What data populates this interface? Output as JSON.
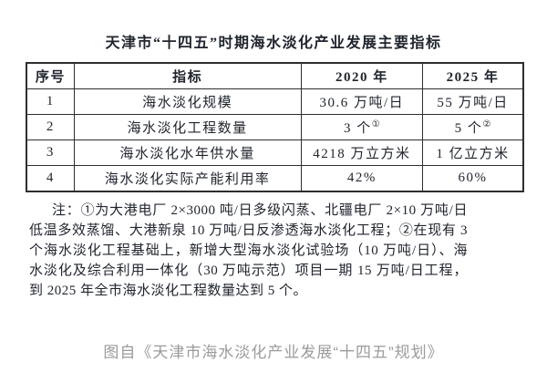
{
  "title": "天津市“十四五”时期海水淡化产业发展主要指标",
  "table": {
    "headers": [
      "序号",
      "指标",
      "2020 年",
      "2025 年"
    ],
    "rows": [
      {
        "no": "1",
        "indicator": "海水淡化规模",
        "v2020": "30.6 万吨/日",
        "s2020": "",
        "v2025": "55 万吨/日",
        "s2025": ""
      },
      {
        "no": "2",
        "indicator": "海水淡化工程数量",
        "v2020": "3 个",
        "s2020": "①",
        "v2025": "5 个",
        "s2025": "②"
      },
      {
        "no": "3",
        "indicator": "海水淡化水年供水量",
        "v2020": "4218 万立方米",
        "s2020": "",
        "v2025": "1 亿立方米",
        "s2025": ""
      },
      {
        "no": "4",
        "indicator": "海水淡化实际产能利用率",
        "v2020": "42%",
        "s2020": "",
        "v2025": "60%",
        "s2025": ""
      }
    ]
  },
  "note": "注：①为大港电厂 2×3000 吨/日多级闪蒸、北疆电厂 2×10 万吨/日低温多效蒸馏、大港新泉 10 万吨/日反渗透海水淡化工程；②在现有 3 个海水淡化工程基础上，新增大型海水淡化试验场（10 万吨/日）、海水淡化及综合利用一体化（30 万吨示范）项目一期 15 万吨/日工程，到 2025 年全市海水淡化工程数量达到 5 个。",
  "caption": "图自《天津市海水淡化产业发展“十四五”规划》",
  "colors": {
    "text": "#20252e",
    "border": "#2e2e2e",
    "caption": "#9b9b9b"
  }
}
